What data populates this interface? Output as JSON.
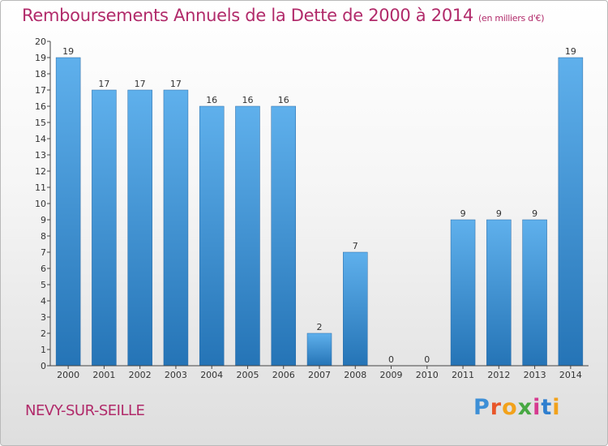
{
  "title": "Remboursements Annuels de la Dette de 2000 à 2014",
  "unit": "(en milliers d'€)",
  "commune": "NEVY-SUR-SEILLE",
  "logo": {
    "letters": [
      "P",
      "r",
      "o",
      "x",
      "i",
      "t",
      "i"
    ],
    "colors": [
      "#3d8fd6",
      "#e8562a",
      "#f2a21b",
      "#47a843",
      "#d63a8f",
      "#2f7fcf",
      "#f2a21b"
    ]
  },
  "colors": {
    "bar_light": "#5fb0ec",
    "bar_dark": "#2574b6",
    "title": "#b12a6a"
  },
  "chart_data": {
    "type": "bar",
    "title": "Remboursements Annuels de la Dette de 2000 à 2014",
    "xlabel": "",
    "ylabel": "",
    "ylim": [
      0,
      20
    ],
    "grid": false,
    "y_ticks": [
      0,
      1,
      2,
      3,
      4,
      5,
      6,
      7,
      8,
      9,
      10,
      11,
      12,
      13,
      14,
      15,
      16,
      17,
      18,
      19,
      20
    ],
    "categories": [
      "2000",
      "2001",
      "2002",
      "2003",
      "2004",
      "2005",
      "2006",
      "2007",
      "2008",
      "2009",
      "2010",
      "2011",
      "2012",
      "2013",
      "2014"
    ],
    "values": [
      19,
      17,
      17,
      17,
      16,
      16,
      16,
      2,
      7,
      0,
      0,
      9,
      9,
      9,
      19
    ],
    "data_labels": [
      "19",
      "17",
      "17",
      "17",
      "16",
      "16",
      "16",
      "2",
      "7",
      "0",
      "0",
      "9",
      "9",
      "9",
      "19"
    ]
  }
}
